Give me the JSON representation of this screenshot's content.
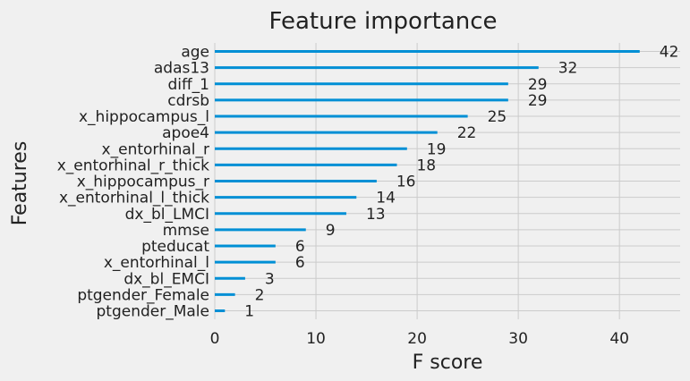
{
  "chart_data": {
    "type": "bar",
    "orientation": "horizontal",
    "title": "Feature importance",
    "xlabel": "F score",
    "ylabel": "Features",
    "xlim": [
      0,
      46
    ],
    "xticks": [
      0,
      10,
      20,
      30,
      40
    ],
    "grid": true,
    "bar_color": "#008fd5",
    "categories": [
      "age",
      "adas13",
      "diff_1",
      "cdrsb",
      "x_hippocampus_l",
      "apoe4",
      "x_entorhinal_r",
      "x_entorhinal_r_thick",
      "x_hippocampus_r",
      "x_entorhinal_l_thick",
      "dx_bl_LMCI",
      "mmse",
      "pteducat",
      "x_entorhinal_l",
      "dx_bl_EMCI",
      "ptgender_Female",
      "ptgender_Male"
    ],
    "values": [
      42,
      32,
      29,
      29,
      25,
      22,
      19,
      18,
      16,
      14,
      13,
      9,
      6,
      6,
      3,
      2,
      1
    ]
  }
}
